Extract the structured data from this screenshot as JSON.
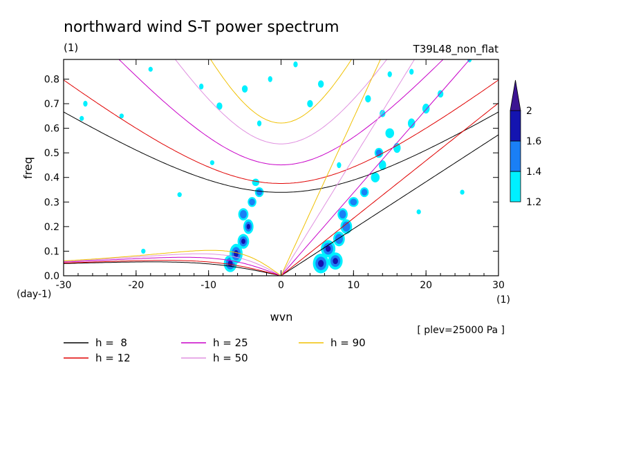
{
  "chart_data": {
    "type": "heatmap",
    "title": "northward wind S-T power spectrum",
    "units_label": "(1)",
    "experiment": "T39L48_non_flat",
    "xlabel": "wvn",
    "ylabel": "freq",
    "x_unit_label": "(1)",
    "y_unit_label": "(day-1)",
    "note": "[ plev=25000 Pa ]",
    "xlim": [
      -30,
      30
    ],
    "ylim": [
      0,
      0.88
    ],
    "xticks": [
      "-30",
      "-20",
      "-10",
      "0",
      "10",
      "20",
      "30"
    ],
    "yticks": [
      "0.0",
      "0.1",
      "0.2",
      "0.3",
      "0.4",
      "0.5",
      "0.6",
      "0.7",
      "0.8"
    ],
    "colorbar": {
      "levels": [
        "1.2",
        "1.4",
        "1.6",
        "2"
      ],
      "colors": [
        "#00f0ff",
        "#1a7ff5",
        "#1414b0",
        "#3c1492"
      ]
    },
    "dispersion_curves": [
      {
        "label": "h =  8",
        "h": 8,
        "color": "#000000"
      },
      {
        "label": "h = 12",
        "h": 12,
        "color": "#e00000"
      },
      {
        "label": "h = 25",
        "h": 25,
        "color": "#c800c8"
      },
      {
        "label": "h = 50",
        "h": 50,
        "color": "#e090e0"
      },
      {
        "label": "h = 90",
        "h": 90,
        "color": "#f0c000"
      }
    ],
    "blobs": [
      [
        -7,
        0.05,
        0.9,
        0.035,
        3
      ],
      [
        -6.2,
        0.09,
        0.9,
        0.04,
        3
      ],
      [
        -5.2,
        0.14,
        0.8,
        0.03,
        3
      ],
      [
        -4.5,
        0.2,
        0.7,
        0.03,
        3
      ],
      [
        -5.2,
        0.25,
        0.7,
        0.025,
        2
      ],
      [
        -4.0,
        0.3,
        0.6,
        0.02,
        2
      ],
      [
        -3.0,
        0.34,
        0.6,
        0.02,
        2
      ],
      [
        -3.5,
        0.38,
        0.5,
        0.015,
        1
      ],
      [
        5.5,
        0.05,
        1.1,
        0.04,
        3
      ],
      [
        7.5,
        0.06,
        1.0,
        0.035,
        3
      ],
      [
        6.5,
        0.11,
        1.0,
        0.035,
        3
      ],
      [
        8.0,
        0.15,
        0.8,
        0.03,
        2
      ],
      [
        9.0,
        0.2,
        0.8,
        0.03,
        2
      ],
      [
        8.5,
        0.25,
        0.7,
        0.025,
        2
      ],
      [
        10.0,
        0.3,
        0.7,
        0.02,
        2
      ],
      [
        11.5,
        0.34,
        0.6,
        0.02,
        2
      ],
      [
        13.0,
        0.4,
        0.6,
        0.02,
        1
      ],
      [
        14.0,
        0.45,
        0.5,
        0.02,
        1
      ],
      [
        13.5,
        0.5,
        0.6,
        0.02,
        2
      ],
      [
        16.0,
        0.52,
        0.5,
        0.02,
        1
      ],
      [
        15.0,
        0.58,
        0.6,
        0.02,
        1
      ],
      [
        18.0,
        0.62,
        0.5,
        0.02,
        1
      ],
      [
        20.0,
        0.68,
        0.5,
        0.02,
        1
      ],
      [
        14.0,
        0.66,
        0.4,
        0.015,
        1
      ],
      [
        12.0,
        0.72,
        0.4,
        0.015,
        1
      ],
      [
        22.0,
        0.74,
        0.4,
        0.015,
        1
      ],
      [
        2.0,
        0.86,
        0.3,
        0.012,
        1
      ],
      [
        -1.5,
        0.8,
        0.3,
        0.012,
        1
      ],
      [
        4.0,
        0.7,
        0.4,
        0.015,
        1
      ],
      [
        -5.0,
        0.76,
        0.4,
        0.015,
        1
      ],
      [
        -8.5,
        0.69,
        0.4,
        0.015,
        1
      ],
      [
        -27.0,
        0.7,
        0.3,
        0.012,
        1
      ],
      [
        -27.5,
        0.64,
        0.3,
        0.01,
        1
      ],
      [
        5.5,
        0.78,
        0.4,
        0.015,
        1
      ],
      [
        -3.0,
        0.62,
        0.3,
        0.012,
        1
      ],
      [
        -11.0,
        0.77,
        0.3,
        0.012,
        1
      ],
      [
        -19.0,
        0.1,
        0.3,
        0.01,
        1
      ],
      [
        -22.0,
        0.65,
        0.3,
        0.01,
        1
      ],
      [
        25.0,
        0.34,
        0.3,
        0.01,
        1
      ],
      [
        19.0,
        0.26,
        0.3,
        0.01,
        1
      ],
      [
        -14.0,
        0.33,
        0.3,
        0.01,
        1
      ],
      [
        -9.5,
        0.46,
        0.3,
        0.01,
        1
      ],
      [
        8.0,
        0.45,
        0.3,
        0.012,
        1
      ],
      [
        -18.0,
        0.84,
        0.3,
        0.01,
        1
      ],
      [
        26.0,
        0.88,
        0.3,
        0.012,
        1
      ],
      [
        15.0,
        0.82,
        0.3,
        0.012,
        1
      ],
      [
        18.0,
        0.83,
        0.3,
        0.012,
        1
      ]
    ]
  }
}
